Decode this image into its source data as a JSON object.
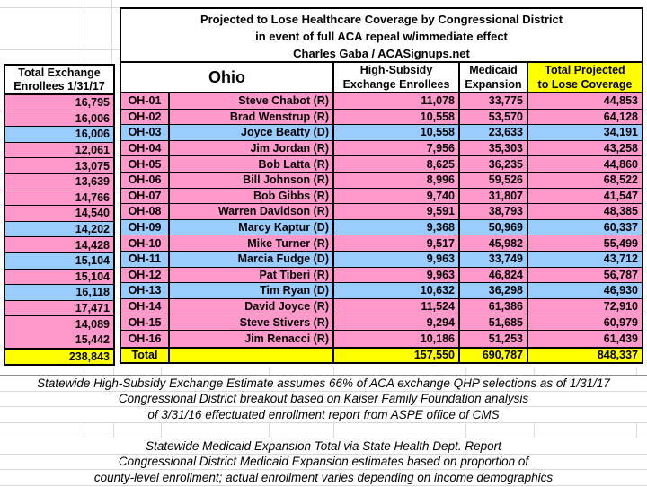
{
  "header": {
    "title_lines": [
      "Projected to Lose Healthcare Coverage by Congressional District",
      "in event of full ACA repeal w/immediate effect",
      "Charles Gaba / ACASignups.net"
    ]
  },
  "left_table": {
    "header": "Total Exchange\nEnrollees 1/31/17",
    "total": "238,843"
  },
  "main_table": {
    "state_label": "Ohio",
    "col_high_subsidy": "High-Subsidy\nExchange Enrollees",
    "col_medicaid": "Medicaid\nExpansion",
    "col_total": "Total Projected\nto Lose Coverage",
    "total_label": "Total",
    "totals": {
      "high_subsidy": "157,550",
      "medicaid": "690,787",
      "total": "848,337"
    }
  },
  "rows": [
    {
      "exchange": "16,795",
      "district": "OH-01",
      "name": "Steve Chabot (R)",
      "party": "R",
      "high_subsidy": "11,078",
      "medicaid": "33,775",
      "total": "44,853"
    },
    {
      "exchange": "16,006",
      "district": "OH-02",
      "name": "Brad Wenstrup (R)",
      "party": "R",
      "high_subsidy": "10,558",
      "medicaid": "53,570",
      "total": "64,128"
    },
    {
      "exchange": "16,006",
      "district": "OH-03",
      "name": "Joyce Beatty (D)",
      "party": "D",
      "high_subsidy": "10,558",
      "medicaid": "23,633",
      "total": "34,191"
    },
    {
      "exchange": "12,061",
      "district": "OH-04",
      "name": "Jim Jordan (R)",
      "party": "R",
      "high_subsidy": "7,956",
      "medicaid": "35,303",
      "total": "43,258"
    },
    {
      "exchange": "13,075",
      "district": "OH-05",
      "name": "Bob Latta (R)",
      "party": "R",
      "high_subsidy": "8,625",
      "medicaid": "36,235",
      "total": "44,860"
    },
    {
      "exchange": "13,639",
      "district": "OH-06",
      "name": "Bill Johnson (R)",
      "party": "R",
      "high_subsidy": "8,996",
      "medicaid": "59,526",
      "total": "68,522"
    },
    {
      "exchange": "14,766",
      "district": "OH-07",
      "name": "Bob Gibbs (R)",
      "party": "R",
      "high_subsidy": "9,740",
      "medicaid": "31,807",
      "total": "41,547"
    },
    {
      "exchange": "14,540",
      "district": "OH-08",
      "name": "Warren Davidson (R)",
      "party": "R",
      "high_subsidy": "9,591",
      "medicaid": "38,793",
      "total": "48,385"
    },
    {
      "exchange": "14,202",
      "district": "OH-09",
      "name": "Marcy Kaptur (D)",
      "party": "D",
      "high_subsidy": "9,368",
      "medicaid": "50,969",
      "total": "60,337"
    },
    {
      "exchange": "14,428",
      "district": "OH-10",
      "name": "Mike Turner (R)",
      "party": "R",
      "high_subsidy": "9,517",
      "medicaid": "45,982",
      "total": "55,499"
    },
    {
      "exchange": "15,104",
      "district": "OH-11",
      "name": "Marcia Fudge (D)",
      "party": "D",
      "high_subsidy": "9,963",
      "medicaid": "33,749",
      "total": "43,712"
    },
    {
      "exchange": "15,104",
      "district": "OH-12",
      "name": "Pat Tiberi (R)",
      "party": "R",
      "high_subsidy": "9,963",
      "medicaid": "46,824",
      "total": "56,787"
    },
    {
      "exchange": "16,118",
      "district": "OH-13",
      "name": "Tim Ryan (D)",
      "party": "D",
      "high_subsidy": "10,632",
      "medicaid": "36,298",
      "total": "46,930"
    },
    {
      "exchange": "17,471",
      "district": "OH-14",
      "name": "David Joyce (R)",
      "party": "R",
      "high_subsidy": "11,524",
      "medicaid": "61,386",
      "total": "72,910"
    },
    {
      "exchange": "14,089",
      "district": "OH-15",
      "name": "Steve Stivers (R)",
      "party": "R",
      "high_subsidy": "9,294",
      "medicaid": "51,685",
      "total": "60,979"
    },
    {
      "exchange": "15,442",
      "district": "OH-16",
      "name": "Jim Renacci (R)",
      "party": "R",
      "high_subsidy": "10,186",
      "medicaid": "51,253",
      "total": "61,439"
    }
  ],
  "footnotes": {
    "block1": [
      "Statewide High-Subsidy Exchange Estimate assumes 66% of ACA exchange QHP selections as of 1/31/17",
      "Congressional District breakout based on Kaiser Family Foundation analysis",
      "of 3/31/16 effectuated enrollment report from ASPE office of CMS"
    ],
    "block2": [
      "Statewide Medicaid Expansion Total via State Health Dept. Report",
      "Congressional District Medicaid Expansion estimates based on proportion of",
      "county-level enrollment; actual enrollment varies depending on income demographics"
    ]
  },
  "colors": {
    "republican_row": "#FF99CC",
    "democrat_row": "#99CCFF",
    "highlight_yellow": "#FFFF00",
    "gridline": "#D9D9D9"
  }
}
